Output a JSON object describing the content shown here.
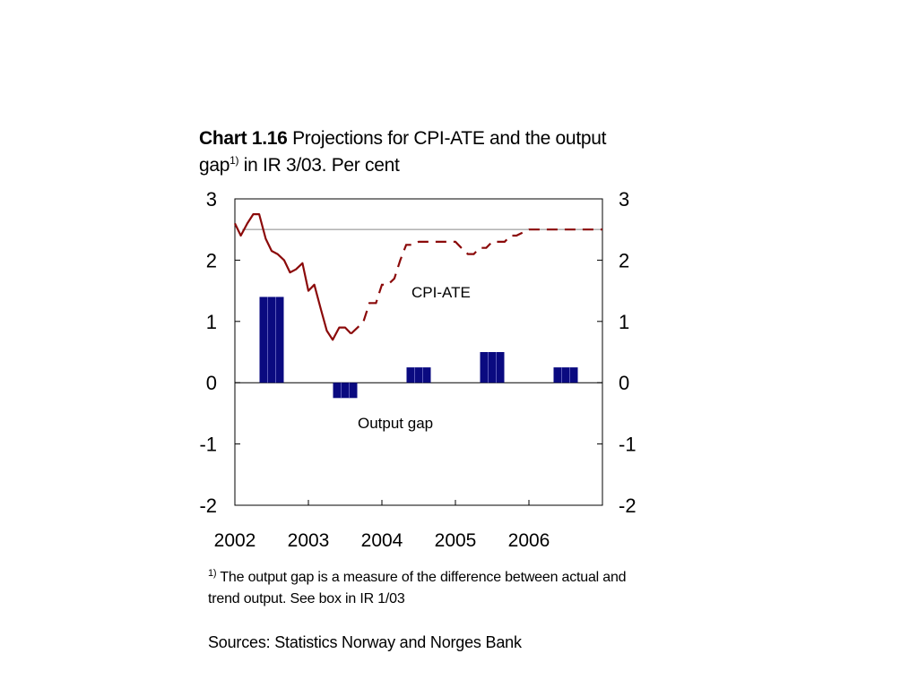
{
  "title": {
    "bold": "Chart 1.16",
    "line1": " Projections for CPI-ATE and the output",
    "line2a": "gap",
    "sup": "1)",
    "line2b": " in IR 3/03. Per cent"
  },
  "footnote": {
    "marker": "1)",
    "text": " The output gap is a measure of the difference between actual and trend output. See box in IR 1/03"
  },
  "sources": "Sources: Statistics Norway and Norges Bank",
  "colors": {
    "cpi": "#8b0a0a",
    "bars": "#0a0a80",
    "target": "#aaaaaa"
  },
  "chart_data": {
    "type": "bar+line",
    "xlabels": [
      "2002",
      "2003",
      "2004",
      "2005",
      "2006"
    ],
    "xlim": [
      2002,
      2007
    ],
    "ylim": [
      -2,
      3
    ],
    "yticks": [
      -2,
      -1,
      0,
      1,
      2,
      3
    ],
    "target_line": 2.5,
    "annotations": {
      "cpi": "CPI-ATE",
      "gap": "Output gap"
    },
    "output_gap": {
      "categories": [
        "2002",
        "2003",
        "2004",
        "2005",
        "2006"
      ],
      "values": [
        1.4,
        -0.25,
        0.25,
        0.5,
        0.25
      ]
    },
    "cpi_ate_actual": [
      [
        2002.0,
        2.6
      ],
      [
        2002.08,
        2.4
      ],
      [
        2002.17,
        2.6
      ],
      [
        2002.25,
        2.75
      ],
      [
        2002.33,
        2.75
      ],
      [
        2002.42,
        2.35
      ],
      [
        2002.5,
        2.15
      ],
      [
        2002.58,
        2.1
      ],
      [
        2002.67,
        2.0
      ],
      [
        2002.75,
        1.8
      ],
      [
        2002.83,
        1.85
      ],
      [
        2002.92,
        1.95
      ],
      [
        2003.0,
        1.5
      ],
      [
        2003.08,
        1.6
      ],
      [
        2003.17,
        1.2
      ],
      [
        2003.25,
        0.85
      ],
      [
        2003.33,
        0.7
      ],
      [
        2003.42,
        0.9
      ],
      [
        2003.5,
        0.9
      ],
      [
        2003.58,
        0.8
      ]
    ],
    "cpi_ate_projection": [
      [
        2003.58,
        0.8
      ],
      [
        2003.67,
        0.9
      ],
      [
        2003.75,
        1.0
      ],
      [
        2003.83,
        1.3
      ],
      [
        2003.92,
        1.3
      ],
      [
        2004.0,
        1.6
      ],
      [
        2004.08,
        1.6
      ],
      [
        2004.17,
        1.7
      ],
      [
        2004.25,
        2.0
      ],
      [
        2004.33,
        2.25
      ],
      [
        2004.42,
        2.25
      ],
      [
        2004.5,
        2.3
      ],
      [
        2004.67,
        2.3
      ],
      [
        2004.83,
        2.3
      ],
      [
        2005.0,
        2.3
      ],
      [
        2005.08,
        2.2
      ],
      [
        2005.17,
        2.1
      ],
      [
        2005.25,
        2.1
      ],
      [
        2005.33,
        2.2
      ],
      [
        2005.42,
        2.2
      ],
      [
        2005.5,
        2.3
      ],
      [
        2005.58,
        2.3
      ],
      [
        2005.67,
        2.3
      ],
      [
        2005.75,
        2.4
      ],
      [
        2005.83,
        2.4
      ],
      [
        2006.0,
        2.5
      ],
      [
        2006.17,
        2.5
      ],
      [
        2006.5,
        2.5
      ],
      [
        2007.0,
        2.5
      ]
    ]
  }
}
